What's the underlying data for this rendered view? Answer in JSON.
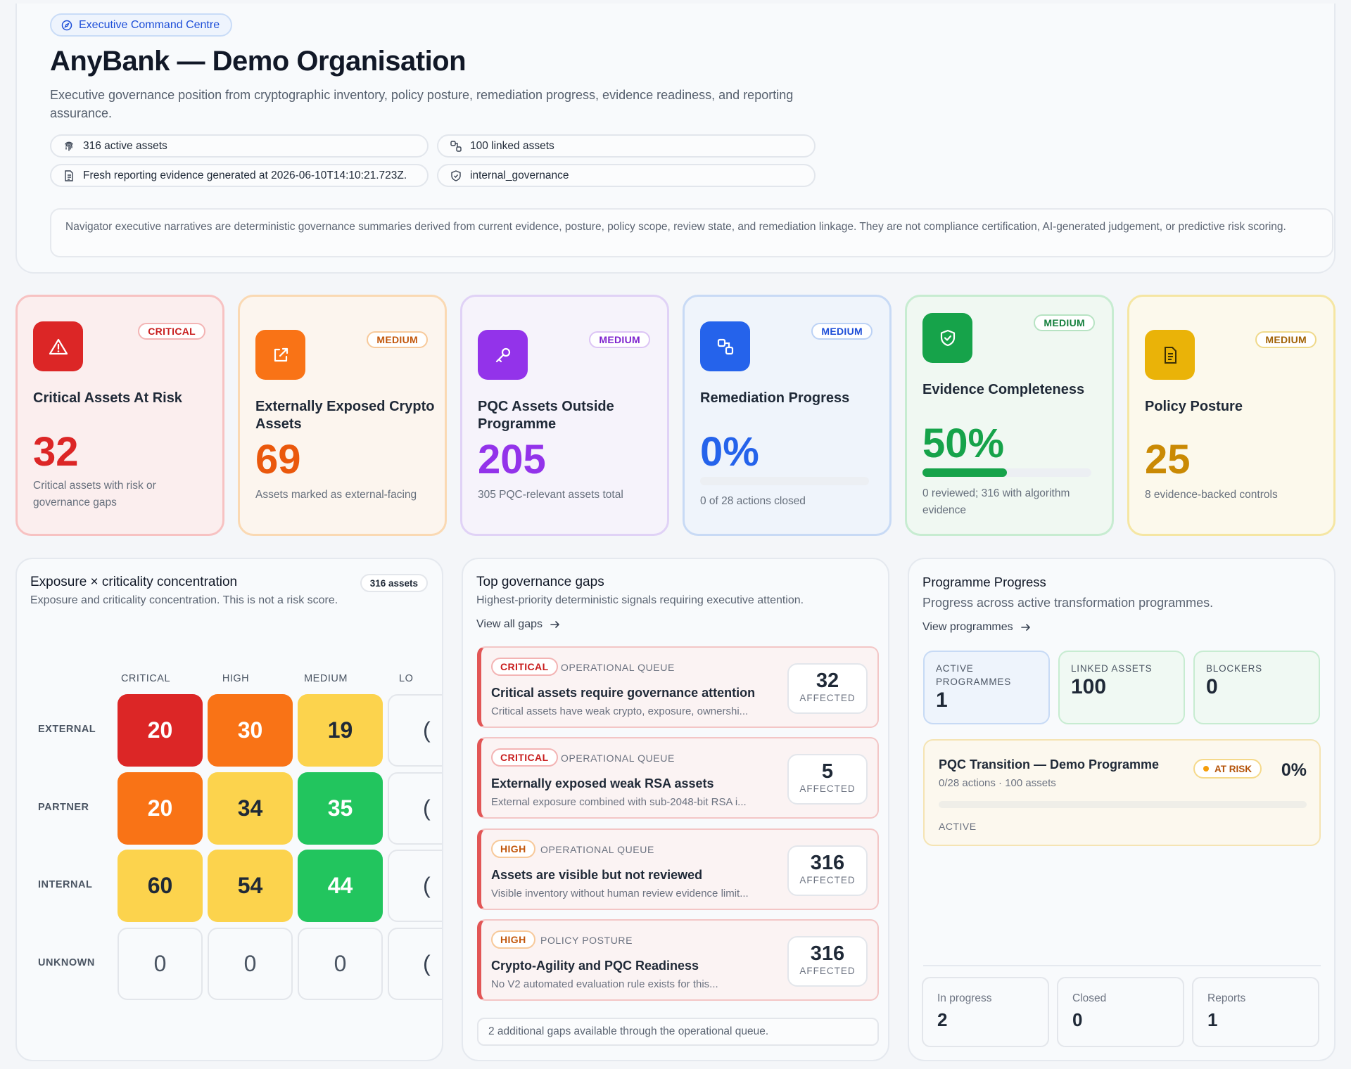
{
  "header": {
    "badge": "Executive Command Centre",
    "title": "AnyBank — Demo Organisation",
    "description": "Executive governance position from cryptographic inventory, policy posture, remediation progress, evidence readiness, and reporting assurance.",
    "pills": [
      {
        "icon": "fingerprint-icon",
        "text": "316 active assets"
      },
      {
        "icon": "link-icon",
        "text": "100 linked assets"
      },
      {
        "icon": "document-icon",
        "text": "Fresh reporting evidence generated at 2026-06-10T14:10:21.723Z."
      },
      {
        "icon": "shield-icon",
        "text": "internal_governance"
      }
    ],
    "note": "Navigator executive narratives are deterministic governance summaries derived from current evidence, posture, policy scope, review state, and remediation linkage. They are not compliance certification, AI-generated judgement, or predictive risk scoring."
  },
  "kpis": [
    {
      "title": "Critical Assets At Risk",
      "severity": "CRITICAL",
      "value": "32",
      "subtitle": "Critical assets with risk or governance gaps",
      "icon": "warning-triangle-icon",
      "accent": "#dc2626"
    },
    {
      "title": "Externally Exposed Crypto Assets",
      "severity": "MEDIUM",
      "value": "69",
      "subtitle": "Assets marked as external-facing",
      "icon": "external-link-icon",
      "accent": "#f97316"
    },
    {
      "title": "PQC Assets Outside Programme",
      "severity": "MEDIUM",
      "value": "205",
      "subtitle": "305 PQC-relevant assets total",
      "icon": "key-icon",
      "accent": "#9333ea"
    },
    {
      "title": "Remediation Progress",
      "severity": "MEDIUM",
      "value": "0%",
      "subtitle": "0 of 28 actions closed",
      "icon": "workflow-icon",
      "accent": "#2563eb",
      "progress": 0
    },
    {
      "title": "Evidence Completeness",
      "severity": "MEDIUM",
      "value": "50%",
      "subtitle": "0 reviewed; 316 with algorithm evidence",
      "icon": "shield-check-icon",
      "accent": "#16a34a",
      "progress": 0.5
    },
    {
      "title": "Policy Posture",
      "severity": "MEDIUM",
      "value": "25",
      "subtitle": "8 evidence-backed controls",
      "icon": "document-icon",
      "accent": "#eab308"
    }
  ],
  "heatmap": {
    "title": "Exposure × criticality concentration",
    "subtitle": "Exposure and criticality concentration. This is not a risk score.",
    "count": "316 assets",
    "columns": [
      "CRITICAL",
      "HIGH",
      "MEDIUM",
      "LO"
    ],
    "rows": [
      {
        "label": "EXTERNAL",
        "values": [
          "20",
          "30",
          "19",
          "("
        ]
      },
      {
        "label": "PARTNER",
        "values": [
          "20",
          "34",
          "35",
          "("
        ]
      },
      {
        "label": "INTERNAL",
        "values": [
          "60",
          "54",
          "44",
          "("
        ]
      },
      {
        "label": "UNKNOWN",
        "values": [
          "0",
          "0",
          "0",
          "("
        ]
      }
    ]
  },
  "gaps": {
    "title": "Top governance gaps",
    "subtitle": "Highest-priority deterministic signals requiring executive attention.",
    "link": "View all gaps",
    "items": [
      {
        "severity": "CRITICAL",
        "queue": "OPERATIONAL QUEUE",
        "title": "Critical assets require governance attention",
        "desc": "Critical assets have weak crypto, exposure, ownershi...",
        "count": "32",
        "unit": "AFFECTED"
      },
      {
        "severity": "CRITICAL",
        "queue": "OPERATIONAL QUEUE",
        "title": "Externally exposed weak RSA assets",
        "desc": "External exposure combined with sub-2048-bit RSA i...",
        "count": "5",
        "unit": "AFFECTED"
      },
      {
        "severity": "HIGH",
        "queue": "OPERATIONAL QUEUE",
        "title": "Assets are visible but not reviewed",
        "desc": "Visible inventory without human review evidence limit...",
        "count": "316",
        "unit": "AFFECTED"
      },
      {
        "severity": "HIGH",
        "queue": "POLICY POSTURE",
        "title": "Crypto-Agility and PQC Readiness",
        "desc": "No V2 automated evaluation rule exists for this...",
        "count": "316",
        "unit": "AFFECTED"
      }
    ],
    "footer": "2 additional gaps available through the operational queue."
  },
  "programmes": {
    "title": "Programme Progress",
    "subtitle": "Progress across active transformation programmes.",
    "link": "View programmes",
    "stats": [
      {
        "label": "ACTIVE PROGRAMMES",
        "value": "1"
      },
      {
        "label": "LINKED ASSETS",
        "value": "100"
      },
      {
        "label": "BLOCKERS",
        "value": "0"
      }
    ],
    "programme": {
      "name": "PQC Transition — Demo Programme",
      "meta": "0/28 actions · 100 assets",
      "status": "AT RISK",
      "percent": "0%",
      "progress": 0,
      "state": "ACTIVE"
    },
    "bottom": [
      {
        "label": "In progress",
        "value": "2"
      },
      {
        "label": "Closed",
        "value": "0"
      },
      {
        "label": "Reports",
        "value": "1"
      }
    ]
  }
}
